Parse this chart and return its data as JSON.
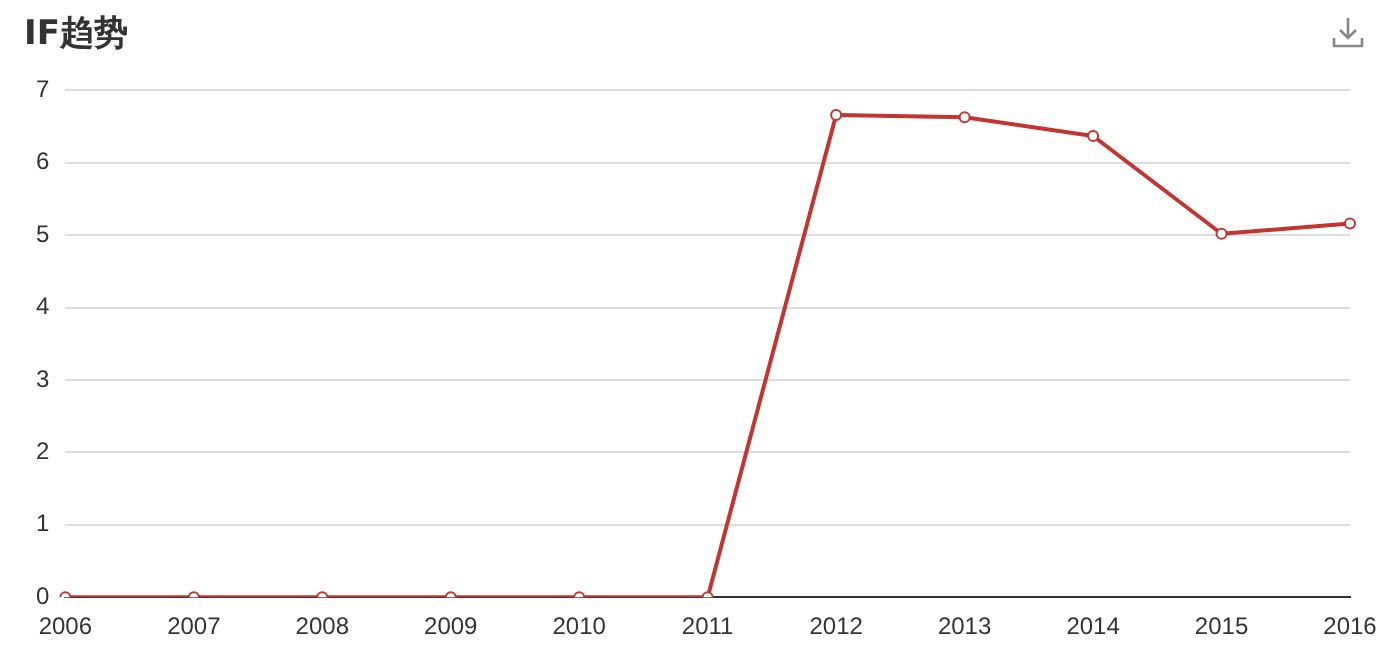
{
  "chart_data": {
    "type": "line",
    "title": "IF趋势",
    "categories": [
      "2006",
      "2007",
      "2008",
      "2009",
      "2010",
      "2011",
      "2012",
      "2013",
      "2014",
      "2015",
      "2016"
    ],
    "series": [
      {
        "color": "#c23531",
        "values": [
          0,
          0,
          0,
          0,
          0,
          0,
          6.66,
          6.63,
          6.37,
          5.02,
          5.16
        ]
      }
    ],
    "ylim": [
      0,
      7
    ],
    "yticks": [
      0,
      1,
      2,
      3,
      4,
      5,
      6,
      7
    ],
    "grid": "y",
    "marker": "circle",
    "line_style": "solid"
  }
}
